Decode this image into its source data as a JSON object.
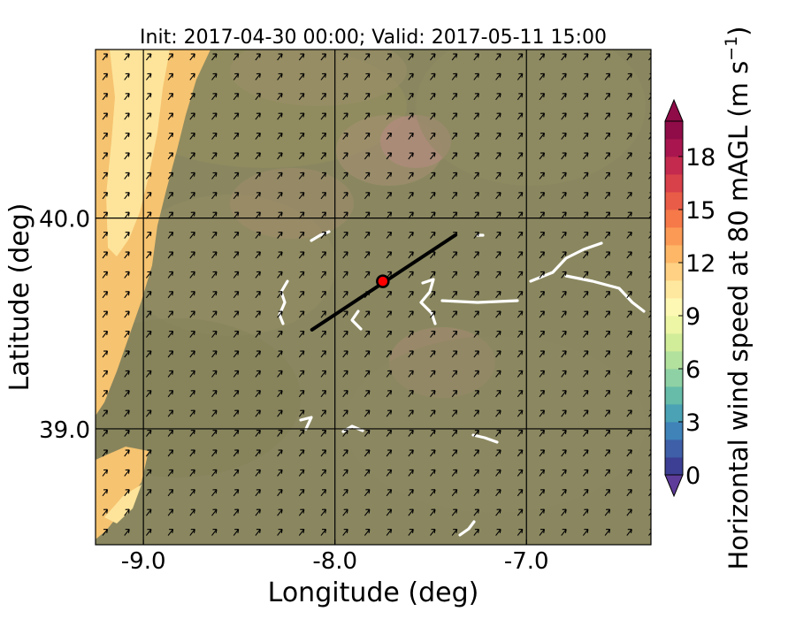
{
  "chart_data": {
    "type": "heatmap",
    "title": "Init: 2017-04-30 00:00; Valid: 2017-05-11 15:00",
    "xlabel": "Longitude (deg)",
    "ylabel": "Latitude (deg)",
    "xlim": [
      -9.25,
      -6.35
    ],
    "ylim": [
      38.45,
      40.8
    ],
    "x_ticks": [
      -9.0,
      -8.0,
      -7.0
    ],
    "x_tick_labels": [
      "-9.0",
      "-8.0",
      "-7.0"
    ],
    "y_ticks": [
      39.0,
      40.0
    ],
    "y_tick_labels": [
      "39.0",
      "40.0"
    ],
    "grid": true,
    "colorbar": {
      "label": "Horizontal wind speed at 80 mAGL (m s⁻¹)",
      "label_main": "Horizontal wind speed at 80 mAGL (m s",
      "label_sup": "−1",
      "label_end": ")",
      "min": 0,
      "max": 20,
      "step": 1,
      "extend": "both",
      "ticks": [
        0,
        3,
        6,
        9,
        12,
        15,
        18
      ],
      "tick_labels": [
        "0",
        "3",
        "6",
        "9",
        "12",
        "15",
        "18"
      ],
      "colors": [
        "#3d3f94",
        "#3f5fa8",
        "#3f83b9",
        "#4aa2b4",
        "#66bca8",
        "#8ed1a4",
        "#b2e09d",
        "#d2ed9a",
        "#ecf6a4",
        "#fdf8b3",
        "#fee8a0",
        "#fed184",
        "#fdb766",
        "#fb9a55",
        "#f67949",
        "#e95c47",
        "#d8404a",
        "#c32a4e",
        "#a9164f",
        "#8f0c48"
      ],
      "over_color": "#8f0c48",
      "under_color": "#5e3c99",
      "position": "right"
    },
    "map": {
      "background_color": "#8a8760",
      "coastal_band_color": "#f6c370",
      "coastal_light_color": "#fde49a",
      "water_body_color": "#ffffff"
    },
    "wind_vectors": {
      "direction": "toward north-east",
      "color": "#000000"
    },
    "cross_section": {
      "start": [
        -8.12,
        39.47
      ],
      "end": [
        -7.37,
        39.92
      ],
      "color": "#000000"
    },
    "site_marker": {
      "lon": -7.75,
      "lat": 39.7,
      "color": "#ff0000",
      "edge_color": "#000000"
    }
  }
}
